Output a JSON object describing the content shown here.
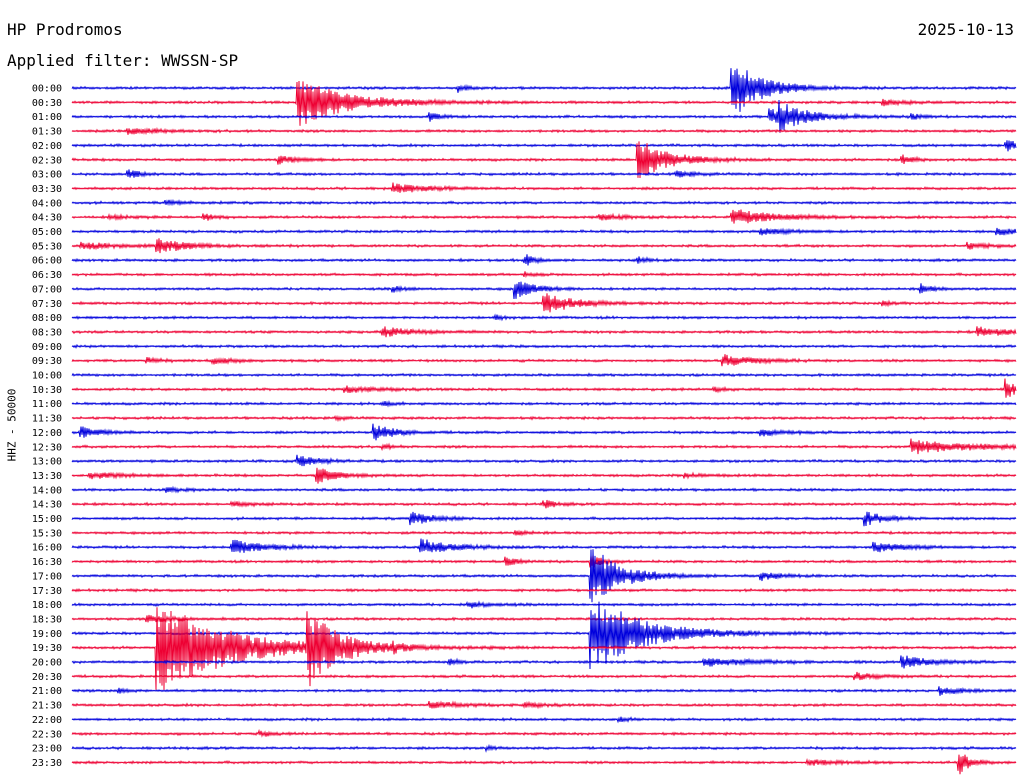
{
  "header": {
    "station": "HP Prodromos",
    "date": "2025-10-13",
    "filter": "Applied filter: WWSSN-SP"
  },
  "chart_data": {
    "type": "line",
    "title": "HP Prodromos",
    "ylabel": "HHZ - 50000",
    "filter": "WWSSN-SP",
    "date": "2025-10-13",
    "colors": [
      "#0000dd",
      "#ee0033"
    ],
    "grid": false,
    "rows": [
      {
        "label": "00:00",
        "events": [
          {
            "t": 0.41,
            "a": 4,
            "d": 0.01
          },
          {
            "t": 0.7,
            "a": 30,
            "d": 0.03
          }
        ]
      },
      {
        "label": "00:30",
        "events": [
          {
            "t": 0.24,
            "a": 24,
            "d": 0.05
          },
          {
            "t": 0.86,
            "a": 3,
            "d": 0.02
          }
        ]
      },
      {
        "label": "01:00",
        "events": [
          {
            "t": 0.38,
            "a": 4,
            "d": 0.01
          },
          {
            "t": 0.74,
            "a": 8,
            "d": 0.04
          },
          {
            "t": 0.75,
            "a": 10,
            "d": 0.02
          },
          {
            "t": 0.89,
            "a": 3,
            "d": 0.01
          }
        ]
      },
      {
        "label": "01:30",
        "events": [
          {
            "t": 0.06,
            "a": 3,
            "d": 0.03
          }
        ]
      },
      {
        "label": "02:00",
        "events": [
          {
            "t": 0.99,
            "a": 6,
            "d": 0.02
          }
        ]
      },
      {
        "label": "02:30",
        "events": [
          {
            "t": 0.22,
            "a": 4,
            "d": 0.02
          },
          {
            "t": 0.6,
            "a": 22,
            "d": 0.03
          },
          {
            "t": 0.88,
            "a": 5,
            "d": 0.01
          }
        ]
      },
      {
        "label": "03:00",
        "events": [
          {
            "t": 0.06,
            "a": 6,
            "d": 0.01
          },
          {
            "t": 0.64,
            "a": 3,
            "d": 0.02
          }
        ]
      },
      {
        "label": "03:30",
        "events": [
          {
            "t": 0.34,
            "a": 5,
            "d": 0.03
          }
        ]
      },
      {
        "label": "04:00",
        "events": [
          {
            "t": 0.1,
            "a": 2,
            "d": 0.02
          }
        ]
      },
      {
        "label": "04:30",
        "events": [
          {
            "t": 0.04,
            "a": 2,
            "d": 0.02
          },
          {
            "t": 0.14,
            "a": 4,
            "d": 0.01
          },
          {
            "t": 0.56,
            "a": 3,
            "d": 0.02
          },
          {
            "t": 0.7,
            "a": 8,
            "d": 0.04
          }
        ]
      },
      {
        "label": "05:00",
        "events": [
          {
            "t": 0.73,
            "a": 3,
            "d": 0.03
          },
          {
            "t": 0.98,
            "a": 3,
            "d": 0.03
          }
        ]
      },
      {
        "label": "05:30",
        "events": [
          {
            "t": 0.01,
            "a": 3,
            "d": 0.04
          },
          {
            "t": 0.09,
            "a": 7,
            "d": 0.03
          },
          {
            "t": 0.95,
            "a": 3,
            "d": 0.02
          }
        ]
      },
      {
        "label": "06:00",
        "events": [
          {
            "t": 0.48,
            "a": 6,
            "d": 0.01
          },
          {
            "t": 0.6,
            "a": 3,
            "d": 0.01
          }
        ]
      },
      {
        "label": "06:30",
        "events": [
          {
            "t": 0.48,
            "a": 2,
            "d": 0.01
          }
        ]
      },
      {
        "label": "07:00",
        "events": [
          {
            "t": 0.34,
            "a": 3,
            "d": 0.01
          },
          {
            "t": 0.47,
            "a": 10,
            "d": 0.02
          },
          {
            "t": 0.9,
            "a": 5,
            "d": 0.01
          }
        ]
      },
      {
        "label": "07:30",
        "events": [
          {
            "t": 0.5,
            "a": 11,
            "d": 0.03
          },
          {
            "t": 0.86,
            "a": 2,
            "d": 0.01
          }
        ]
      },
      {
        "label": "08:00",
        "events": [
          {
            "t": 0.45,
            "a": 2,
            "d": 0.01
          }
        ]
      },
      {
        "label": "08:30",
        "events": [
          {
            "t": 0.33,
            "a": 5,
            "d": 0.03
          },
          {
            "t": 0.96,
            "a": 5,
            "d": 0.03
          }
        ]
      },
      {
        "label": "09:00",
        "events": []
      },
      {
        "label": "09:30",
        "events": [
          {
            "t": 0.08,
            "a": 3,
            "d": 0.01
          },
          {
            "t": 0.15,
            "a": 3,
            "d": 0.02
          },
          {
            "t": 0.69,
            "a": 6,
            "d": 0.03
          }
        ]
      },
      {
        "label": "10:00",
        "events": []
      },
      {
        "label": "10:30",
        "events": [
          {
            "t": 0.29,
            "a": 3,
            "d": 0.03
          },
          {
            "t": 0.68,
            "a": 3,
            "d": 0.01
          },
          {
            "t": 0.99,
            "a": 10,
            "d": 0.01
          }
        ]
      },
      {
        "label": "11:00",
        "events": [
          {
            "t": 0.33,
            "a": 2,
            "d": 0.01
          }
        ]
      },
      {
        "label": "11:30",
        "events": [
          {
            "t": 0.28,
            "a": 2,
            "d": 0.01
          }
        ]
      },
      {
        "label": "12:00",
        "events": [
          {
            "t": 0.01,
            "a": 5,
            "d": 0.02
          },
          {
            "t": 0.32,
            "a": 9,
            "d": 0.02
          },
          {
            "t": 0.73,
            "a": 4,
            "d": 0.02
          }
        ]
      },
      {
        "label": "12:30",
        "events": [
          {
            "t": 0.33,
            "a": 2,
            "d": 0.01
          },
          {
            "t": 0.89,
            "a": 7,
            "d": 0.06
          }
        ]
      },
      {
        "label": "13:00",
        "events": [
          {
            "t": 0.24,
            "a": 6,
            "d": 0.02
          }
        ]
      },
      {
        "label": "13:30",
        "events": [
          {
            "t": 0.02,
            "a": 3,
            "d": 0.03
          },
          {
            "t": 0.26,
            "a": 8,
            "d": 0.02
          },
          {
            "t": 0.65,
            "a": 2,
            "d": 0.02
          }
        ]
      },
      {
        "label": "14:00",
        "events": [
          {
            "t": 0.1,
            "a": 2,
            "d": 0.02
          }
        ]
      },
      {
        "label": "14:30",
        "events": [
          {
            "t": 0.17,
            "a": 2,
            "d": 0.02
          },
          {
            "t": 0.5,
            "a": 5,
            "d": 0.01
          }
        ]
      },
      {
        "label": "15:00",
        "events": [
          {
            "t": 0.36,
            "a": 7,
            "d": 0.02
          },
          {
            "t": 0.84,
            "a": 7,
            "d": 0.02
          }
        ]
      },
      {
        "label": "15:30",
        "events": [
          {
            "t": 0.47,
            "a": 3,
            "d": 0.01
          }
        ]
      },
      {
        "label": "16:00",
        "events": [
          {
            "t": 0.17,
            "a": 8,
            "d": 0.03
          },
          {
            "t": 0.37,
            "a": 8,
            "d": 0.03
          },
          {
            "t": 0.85,
            "a": 5,
            "d": 0.03
          }
        ]
      },
      {
        "label": "16:30",
        "events": [
          {
            "t": 0.46,
            "a": 5,
            "d": 0.01
          },
          {
            "t": 0.55,
            "a": 8,
            "d": 0.01
          }
        ]
      },
      {
        "label": "17:00",
        "events": [
          {
            "t": 0.55,
            "a": 30,
            "d": 0.03
          },
          {
            "t": 0.73,
            "a": 4,
            "d": 0.02
          }
        ]
      },
      {
        "label": "17:30",
        "events": []
      },
      {
        "label": "18:00",
        "events": [
          {
            "t": 0.42,
            "a": 3,
            "d": 0.02
          }
        ]
      },
      {
        "label": "18:30",
        "events": [
          {
            "t": 0.08,
            "a": 4,
            "d": 0.02
          }
        ]
      },
      {
        "label": "19:00",
        "events": [
          {
            "t": 0.55,
            "a": 40,
            "d": 0.05
          }
        ]
      },
      {
        "label": "19:30",
        "events": [
          {
            "t": 0.09,
            "a": 50,
            "d": 0.07
          },
          {
            "t": 0.25,
            "a": 38,
            "d": 0.03
          },
          {
            "t": 0.34,
            "a": 3,
            "d": 0.01
          }
        ]
      },
      {
        "label": "20:00",
        "events": [
          {
            "t": 0.4,
            "a": 3,
            "d": 0.01
          },
          {
            "t": 0.67,
            "a": 4,
            "d": 0.05
          },
          {
            "t": 0.88,
            "a": 6,
            "d": 0.03
          }
        ]
      },
      {
        "label": "20:30",
        "events": [
          {
            "t": 0.83,
            "a": 4,
            "d": 0.02
          }
        ]
      },
      {
        "label": "21:00",
        "events": [
          {
            "t": 0.05,
            "a": 2,
            "d": 0.01
          },
          {
            "t": 0.92,
            "a": 4,
            "d": 0.02
          }
        ]
      },
      {
        "label": "21:30",
        "events": [
          {
            "t": 0.38,
            "a": 3,
            "d": 0.03
          },
          {
            "t": 0.48,
            "a": 2,
            "d": 0.02
          }
        ]
      },
      {
        "label": "22:00",
        "events": [
          {
            "t": 0.58,
            "a": 2,
            "d": 0.01
          }
        ]
      },
      {
        "label": "22:30",
        "events": [
          {
            "t": 0.2,
            "a": 3,
            "d": 0.01
          }
        ]
      },
      {
        "label": "23:00",
        "events": [
          {
            "t": 0.44,
            "a": 2,
            "d": 0.01
          }
        ]
      },
      {
        "label": "23:30",
        "events": [
          {
            "t": 0.78,
            "a": 3,
            "d": 0.03
          },
          {
            "t": 0.94,
            "a": 14,
            "d": 0.01
          }
        ]
      }
    ]
  }
}
